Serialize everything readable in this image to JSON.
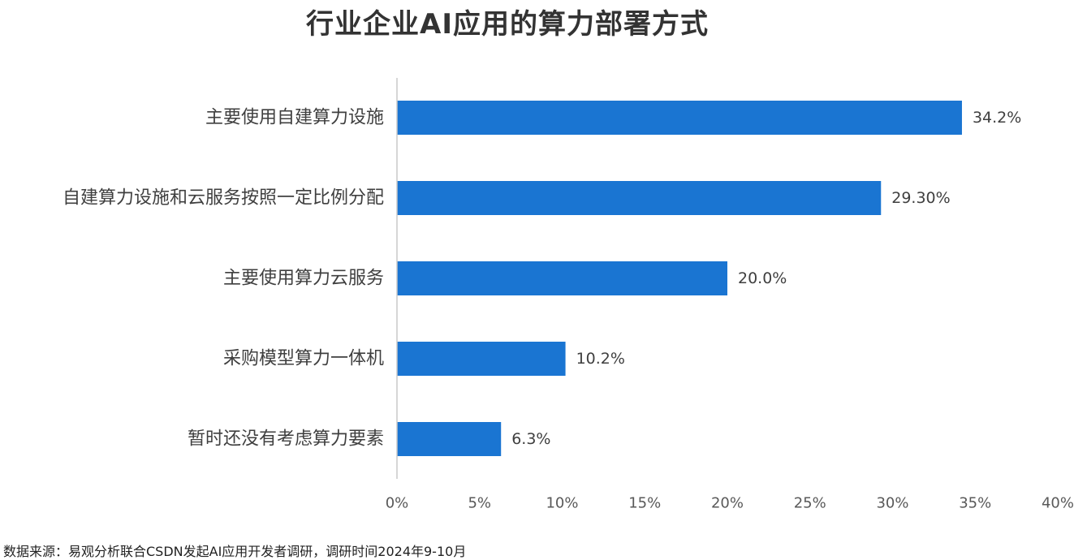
{
  "chart_data": {
    "type": "bar",
    "orientation": "horizontal",
    "title": "行业企业AI应用的算力部署方式",
    "categories": [
      "主要使用自建算力设施",
      "自建算力设施和云服务按照一定比例分配",
      "主要使用算力云服务",
      "采购模型算力一体机",
      "暂时还没有考虑算力要素"
    ],
    "values": [
      34.2,
      29.3,
      20.0,
      10.2,
      6.3
    ],
    "value_labels": [
      "34.2%",
      "29.30%",
      "20.0%",
      "10.2%",
      "6.3%"
    ],
    "xlim": [
      0,
      40
    ],
    "xticks": [
      0,
      5,
      10,
      15,
      20,
      25,
      30,
      35,
      40
    ],
    "xtick_labels": [
      "0%",
      "5%",
      "10%",
      "15%",
      "20%",
      "25%",
      "30%",
      "35%",
      "40%"
    ],
    "bar_color": "#1a75d2",
    "grid": false,
    "legend": "none"
  },
  "source_note": "数据来源：易观分析联合CSDN发起AI应用开发者调研，调研时间2024年9-10月"
}
